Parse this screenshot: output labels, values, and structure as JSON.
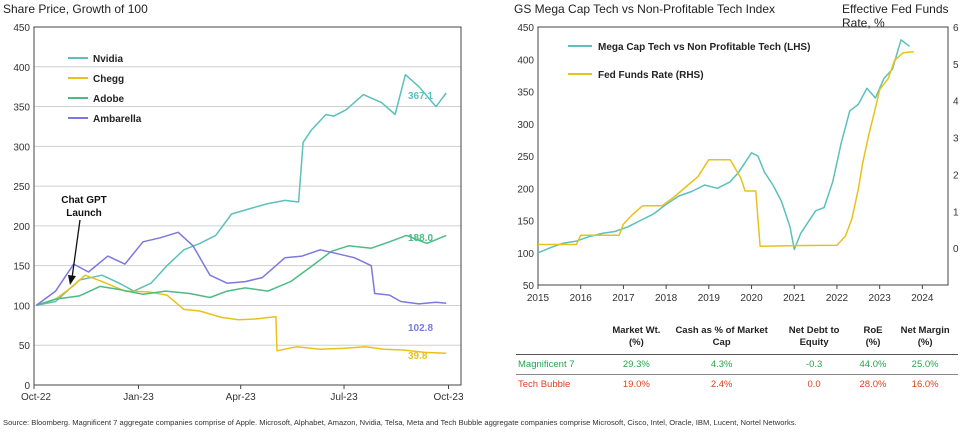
{
  "colors": {
    "nvidia": "#5cc0bb",
    "chegg": "#e8c21a",
    "adobe": "#4dbb86",
    "ambarella": "#7b78e0",
    "mega_cap": "#5cc0bb",
    "fed_funds": "#e8c21a",
    "magnificent": "#27a44a",
    "bubble": "#e0401d",
    "grid": "#d0d0d0",
    "axis": "#444444"
  },
  "left_chart": {
    "title": "Share Price, Growth of 100",
    "annotation_line1": "Chat GPT",
    "annotation_line2": "Launch",
    "end_labels": [
      "367.1",
      "188.0",
      "102.8",
      "39.8"
    ]
  },
  "right_chart": {
    "title": "GS Mega Cap Tech vs Non-Profitable Tech Index",
    "right_title": "Effective Fed Funds Rate, %"
  },
  "chart_data": [
    {
      "type": "line",
      "title": "Share Price, Growth of 100",
      "x_ticks": [
        "Oct-22",
        "Jan-23",
        "Apr-23",
        "Jul-23",
        "Oct-23"
      ],
      "ylim": [
        0,
        450
      ],
      "y_ticks": [
        0,
        50,
        100,
        150,
        200,
        250,
        300,
        350,
        400,
        450
      ],
      "grid": true,
      "legend": "top-left",
      "annotation": "Chat GPT Launch",
      "series": [
        {
          "name": "Nvidia",
          "x": [
            "2022-10-03",
            "2022-10-20",
            "2022-11-10",
            "2022-11-30",
            "2022-12-15",
            "2022-12-28",
            "2023-01-12",
            "2023-01-26",
            "2023-02-10",
            "2023-02-24",
            "2023-03-10",
            "2023-03-24",
            "2023-04-10",
            "2023-04-25",
            "2023-05-10",
            "2023-05-22",
            "2023-05-26",
            "2023-06-02",
            "2023-06-15",
            "2023-06-22",
            "2023-07-03",
            "2023-07-18",
            "2023-08-03",
            "2023-08-15",
            "2023-08-24",
            "2023-09-05",
            "2023-09-20",
            "2023-09-29"
          ],
          "values": [
            100,
            105,
            132,
            138,
            128,
            118,
            128,
            150,
            170,
            178,
            188,
            215,
            222,
            228,
            232,
            230,
            305,
            320,
            340,
            338,
            346,
            365,
            355,
            340,
            390,
            375,
            350,
            367.1
          ]
        },
        {
          "name": "Chegg",
          "x": [
            "2022-10-03",
            "2022-10-20",
            "2022-11-05",
            "2022-11-15",
            "2022-11-30",
            "2022-12-20",
            "2023-01-10",
            "2023-01-26",
            "2023-02-10",
            "2023-02-24",
            "2023-03-15",
            "2023-03-30",
            "2023-04-14",
            "2023-05-02",
            "2023-05-03",
            "2023-05-20",
            "2023-06-10",
            "2023-06-30",
            "2023-07-20",
            "2023-08-05",
            "2023-08-22",
            "2023-09-10",
            "2023-09-29"
          ],
          "values": [
            100,
            108,
            125,
            138,
            130,
            118,
            117,
            113,
            95,
            93,
            85,
            82,
            83,
            86,
            43,
            48,
            45,
            46,
            48,
            45,
            44,
            41,
            39.8
          ]
        },
        {
          "name": "Adobe",
          "x": [
            "2022-10-03",
            "2022-10-20",
            "2022-11-10",
            "2022-11-28",
            "2022-12-15",
            "2023-01-05",
            "2023-01-25",
            "2023-02-15",
            "2023-03-05",
            "2023-03-20",
            "2023-04-05",
            "2023-04-25",
            "2023-05-15",
            "2023-06-05",
            "2023-06-20",
            "2023-07-05",
            "2023-07-25",
            "2023-08-10",
            "2023-08-25",
            "2023-09-12",
            "2023-09-29"
          ],
          "values": [
            100,
            108,
            112,
            124,
            120,
            114,
            118,
            115,
            110,
            118,
            122,
            118,
            130,
            152,
            168,
            175,
            172,
            180,
            188,
            178,
            188.0
          ]
        },
        {
          "name": "Ambarella",
          "x": [
            "2022-10-03",
            "2022-10-20",
            "2022-11-05",
            "2022-11-18",
            "2022-12-05",
            "2022-12-20",
            "2023-01-05",
            "2023-01-20",
            "2023-02-05",
            "2023-02-18",
            "2023-03-05",
            "2023-03-20",
            "2023-04-05",
            "2023-04-20",
            "2023-05-10",
            "2023-05-25",
            "2023-06-10",
            "2023-06-25",
            "2023-07-10",
            "2023-07-25",
            "2023-07-28",
            "2023-08-10",
            "2023-08-20",
            "2023-09-05",
            "2023-09-20",
            "2023-09-29"
          ],
          "values": [
            100,
            118,
            152,
            142,
            162,
            152,
            180,
            185,
            192,
            175,
            138,
            128,
            130,
            135,
            160,
            162,
            170,
            165,
            160,
            150,
            115,
            113,
            105,
            102,
            104,
            102.8
          ]
        }
      ]
    },
    {
      "type": "line",
      "title": "GS Mega Cap Tech vs Non-Profitable Tech Index",
      "y2label": "Effective Fed Funds Rate, %",
      "x_ticks": [
        2015,
        2016,
        2017,
        2018,
        2019,
        2020,
        2021,
        2022,
        2023,
        2024
      ],
      "ylim": [
        50,
        450
      ],
      "y_ticks": [
        50,
        100,
        150,
        200,
        250,
        300,
        350,
        400,
        450
      ],
      "y2lim": [
        -1,
        6
      ],
      "y2_ticks": [
        0,
        1,
        2,
        3,
        4,
        5,
        6
      ],
      "grid": false,
      "legend": "top-left",
      "series": [
        {
          "name": "Mega Cap Tech vs Non Profitable Tech (LHS)",
          "axis": "left",
          "x": [
            2015.0,
            2015.3,
            2015.6,
            2015.9,
            2016.2,
            2016.5,
            2016.8,
            2017.1,
            2017.4,
            2017.7,
            2018.0,
            2018.3,
            2018.6,
            2018.9,
            2019.2,
            2019.5,
            2019.7,
            2019.9,
            2020.0,
            2020.15,
            2020.3,
            2020.5,
            2020.7,
            2020.9,
            2021.0,
            2021.15,
            2021.3,
            2021.5,
            2021.7,
            2021.9,
            2022.1,
            2022.3,
            2022.5,
            2022.7,
            2022.9,
            2023.1,
            2023.3,
            2023.5,
            2023.7
          ],
          "values": [
            100,
            108,
            115,
            118,
            125,
            130,
            133,
            140,
            150,
            160,
            175,
            188,
            195,
            205,
            200,
            210,
            225,
            245,
            255,
            250,
            225,
            205,
            180,
            140,
            105,
            130,
            145,
            165,
            170,
            210,
            270,
            320,
            330,
            355,
            340,
            370,
            385,
            430,
            420
          ]
        },
        {
          "name": "Fed Funds Rate (RHS)",
          "axis": "right",
          "x": [
            2015.0,
            2015.9,
            2016.0,
            2016.9,
            2017.0,
            2017.2,
            2017.45,
            2017.9,
            2018.2,
            2018.5,
            2018.75,
            2019.0,
            2019.5,
            2019.6,
            2019.75,
            2019.85,
            2020.1,
            2020.2,
            2021.0,
            2022.0,
            2022.2,
            2022.35,
            2022.5,
            2022.6,
            2022.75,
            2022.9,
            2023.0,
            2023.2,
            2023.35,
            2023.55,
            2023.8
          ],
          "values": [
            0.1,
            0.1,
            0.35,
            0.35,
            0.65,
            0.9,
            1.15,
            1.15,
            1.4,
            1.7,
            1.95,
            2.4,
            2.4,
            2.2,
            1.9,
            1.55,
            1.55,
            0.05,
            0.07,
            0.08,
            0.33,
            0.8,
            1.6,
            2.3,
            3.1,
            3.8,
            4.3,
            4.6,
            5.1,
            5.3,
            5.33
          ]
        }
      ]
    },
    {
      "type": "table",
      "columns": [
        "Market Wt. (%)",
        "Cash as % of Market Cap",
        "Net Debt to Equity",
        "RoE (%)",
        "Net Margin (%)"
      ],
      "rows": [
        {
          "name": "Magnificent 7",
          "values": [
            "29.3%",
            "4.3%",
            "-0.3",
            "44.0%",
            "25.0%"
          ]
        },
        {
          "name": "Tech Bubble",
          "values": [
            "19.0%",
            "2.4%",
            "0.0",
            "28.0%",
            "16.0%"
          ]
        }
      ]
    }
  ],
  "source": "Source: Bloomberg. Magnificent 7 aggregate companies comprise of Apple. Microsoft, Alphabet, Amazon, Nvidia, Telsa, Meta and Tech Bubble aggregate companies comprise Microsoft, Cisco, Intel, Oracle, IBM, Lucent, Nortel Networks."
}
